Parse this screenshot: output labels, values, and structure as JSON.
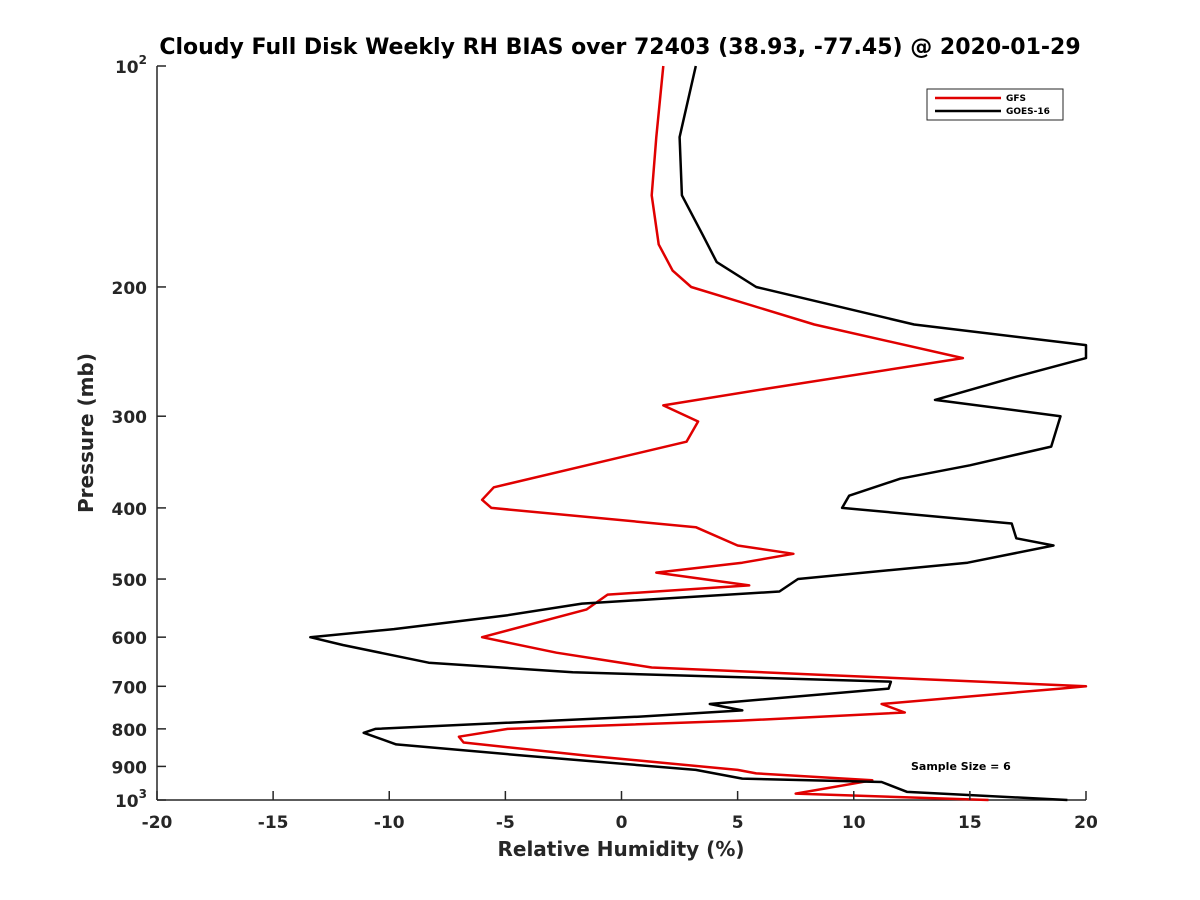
{
  "chart_data": {
    "type": "line",
    "title": "Cloudy Full Disk Weekly RH BIAS over 72403 (38.93, -77.45) @ 2020-01-29",
    "xlabel": "Relative Humidity (%)",
    "ylabel": "Pressure (mb)",
    "xlim": [
      -20,
      20
    ],
    "ylim": [
      100,
      1000
    ],
    "yscale": "log",
    "y_reversed": true,
    "grid": false,
    "legend_position": "top-right",
    "annotation": "Sample Size = 6",
    "x_ticks": [
      "-20",
      "-15",
      "-10",
      "-5",
      "0",
      "5",
      "10",
      "15",
      "20"
    ],
    "y_ticks": [
      {
        "value": 100,
        "base": "10",
        "exp": "2"
      },
      {
        "value": 200,
        "label": "200"
      },
      {
        "value": 300,
        "label": "300"
      },
      {
        "value": 400,
        "label": "400"
      },
      {
        "value": 500,
        "label": "500"
      },
      {
        "value": 600,
        "label": "600"
      },
      {
        "value": 700,
        "label": "700"
      },
      {
        "value": 800,
        "label": "800"
      },
      {
        "value": 900,
        "label": "900"
      },
      {
        "value": 1000,
        "base": "10",
        "exp": "3"
      }
    ],
    "series": [
      {
        "name": "GFS",
        "color": "#e00000",
        "points": [
          [
            1.8,
            100
          ],
          [
            1.5,
            125
          ],
          [
            1.3,
            150
          ],
          [
            1.6,
            175
          ],
          [
            2.2,
            190
          ],
          [
            3.0,
            200
          ],
          [
            8.3,
            225
          ],
          [
            14.7,
            250
          ],
          [
            6.3,
            275
          ],
          [
            1.8,
            290
          ],
          [
            3.3,
            305
          ],
          [
            2.8,
            325
          ],
          [
            -5.5,
            375
          ],
          [
            -6.0,
            390
          ],
          [
            -5.6,
            400
          ],
          [
            3.2,
            425
          ],
          [
            5.0,
            450
          ],
          [
            7.4,
            462
          ],
          [
            5.2,
            475
          ],
          [
            1.5,
            490
          ],
          [
            5.5,
            510
          ],
          [
            -0.6,
            525
          ],
          [
            -1.5,
            550
          ],
          [
            -6.0,
            600
          ],
          [
            -2.8,
            630
          ],
          [
            1.3,
            660
          ],
          [
            8.5,
            675
          ],
          [
            20.0,
            700
          ],
          [
            18.9,
            705
          ],
          [
            11.2,
            740
          ],
          [
            12.2,
            760
          ],
          [
            5.0,
            780
          ],
          [
            -4.9,
            800
          ],
          [
            -7.0,
            820
          ],
          [
            -6.8,
            835
          ],
          [
            -1.5,
            870
          ],
          [
            5.0,
            910
          ],
          [
            5.8,
            920
          ],
          [
            10.8,
            940
          ],
          [
            7.5,
            980
          ],
          [
            15.8,
            1000
          ]
        ]
      },
      {
        "name": "GOES-16",
        "color": "#000000",
        "points": [
          [
            3.2,
            100
          ],
          [
            2.5,
            125
          ],
          [
            2.6,
            150
          ],
          [
            3.5,
            170
          ],
          [
            4.1,
            185
          ],
          [
            5.8,
            200
          ],
          [
            12.6,
            225
          ],
          [
            20.0,
            240
          ],
          [
            20.0,
            250
          ],
          [
            17.0,
            265
          ],
          [
            13.5,
            285
          ],
          [
            18.9,
            300
          ],
          [
            18.5,
            330
          ],
          [
            15.0,
            350
          ],
          [
            12.0,
            365
          ],
          [
            9.8,
            385
          ],
          [
            9.5,
            400
          ],
          [
            16.8,
            420
          ],
          [
            17.0,
            440
          ],
          [
            18.6,
            450
          ],
          [
            14.9,
            475
          ],
          [
            7.6,
            500
          ],
          [
            6.8,
            520
          ],
          [
            -1.7,
            540
          ],
          [
            -4.9,
            560
          ],
          [
            -9.8,
            585
          ],
          [
            -13.4,
            600
          ],
          [
            -12.0,
            615
          ],
          [
            -8.3,
            650
          ],
          [
            -2.1,
            670
          ],
          [
            11.6,
            690
          ],
          [
            11.5,
            705
          ],
          [
            3.8,
            740
          ],
          [
            5.2,
            755
          ],
          [
            0.7,
            770
          ],
          [
            -10.6,
            800
          ],
          [
            -11.1,
            810
          ],
          [
            -9.7,
            840
          ],
          [
            -4.2,
            870
          ],
          [
            3.2,
            910
          ],
          [
            5.2,
            935
          ],
          [
            11.2,
            945
          ],
          [
            12.3,
            975
          ],
          [
            19.2,
            1000
          ]
        ]
      }
    ]
  }
}
